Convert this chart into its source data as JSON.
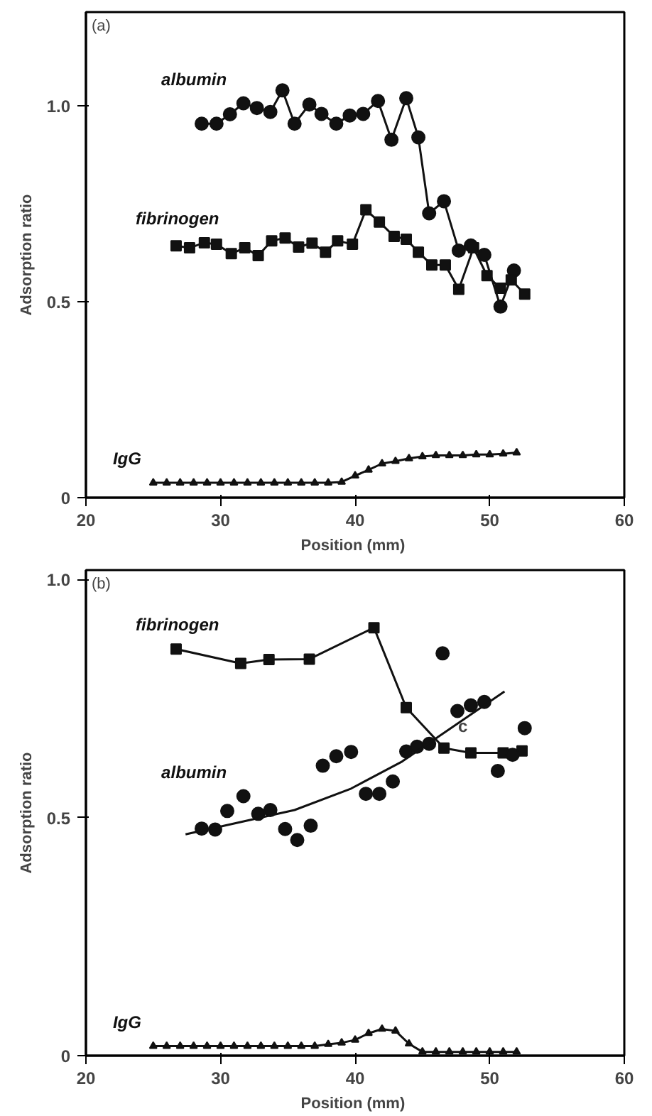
{
  "chart_data": [
    {
      "type": "line",
      "xlabel": "Position  (mm)",
      "ylabel": "Adsorption ratio",
      "annotations": [
        "(a)"
      ],
      "xlim": [
        20,
        60
      ],
      "xticks": [
        20,
        30,
        40,
        50,
        60
      ],
      "ylim": [
        0,
        1.24
      ],
      "yticks": [
        0,
        0.5,
        {
          "value": 1,
          "label": "1.0"
        }
      ],
      "grid": false,
      "line_style": "solid",
      "series": [
        {
          "name": "albumin",
          "color": "#111111",
          "marker": "circle",
          "x": [
            28.6,
            29.7,
            30.7,
            31.7,
            32.7,
            33.7,
            34.6,
            35.5,
            36.6,
            37.5,
            38.6,
            39.6,
            40.6,
            41.7,
            42.7,
            43.8,
            44.7,
            45.5,
            46.6,
            47.7,
            48.6,
            49.6,
            50.8,
            51.8
          ],
          "values": [
            0.955,
            0.955,
            0.979,
            1.007,
            0.995,
            0.985,
            1.04,
            0.955,
            1.004,
            0.98,
            0.955,
            0.976,
            0.98,
            1.013,
            0.914,
            1.02,
            0.92,
            0.726,
            0.757,
            0.631,
            0.644,
            0.62,
            0.488,
            0.58
          ]
        },
        {
          "name": "fibrinogen",
          "color": "#111111",
          "marker": "square",
          "x": [
            26.7,
            27.7,
            28.8,
            29.7,
            30.8,
            31.8,
            32.8,
            33.8,
            34.8,
            35.8,
            36.8,
            37.8,
            38.7,
            39.8,
            40.8,
            41.8,
            42.9,
            43.8,
            44.7,
            45.7,
            46.7,
            47.7,
            48.8,
            49.8,
            50.8,
            51.6,
            52.6
          ],
          "values": [
            0.643,
            0.638,
            0.651,
            0.647,
            0.623,
            0.638,
            0.618,
            0.656,
            0.663,
            0.64,
            0.65,
            0.627,
            0.656,
            0.647,
            0.735,
            0.704,
            0.667,
            0.66,
            0.627,
            0.594,
            0.594,
            0.532,
            0.638,
            0.567,
            0.535,
            0.556,
            0.52
          ]
        },
        {
          "name": "IgG",
          "color": "#111111",
          "marker": "triangle",
          "x": [
            25,
            26,
            27,
            28,
            29,
            30,
            31,
            32,
            33,
            34,
            35,
            36,
            37,
            38,
            39,
            40,
            41,
            42,
            43,
            44,
            45,
            46,
            47,
            48,
            49,
            50,
            51,
            52
          ],
          "values": [
            0.038,
            0.038,
            0.038,
            0.038,
            0.038,
            0.038,
            0.038,
            0.038,
            0.038,
            0.038,
            0.038,
            0.038,
            0.038,
            0.038,
            0.04,
            0.056,
            0.071,
            0.087,
            0.093,
            0.1,
            0.105,
            0.108,
            0.108,
            0.108,
            0.11,
            0.11,
            0.112,
            0.115
          ]
        }
      ]
    },
    {
      "type": "line",
      "xlabel": "Position  (mm)",
      "ylabel": "Adsorption ratio",
      "annotations": [
        "(b)",
        "c"
      ],
      "xlim": [
        20,
        60
      ],
      "xticks": [
        20,
        30,
        40,
        50,
        60
      ],
      "ylim": [
        0,
        1.02
      ],
      "yticks": [
        0,
        0.5,
        {
          "value": 1,
          "label": "1.0"
        }
      ],
      "grid": false,
      "line_style": "solid",
      "series": [
        {
          "name": "fibrinogen",
          "color": "#111111",
          "marker": "square",
          "x": [
            26.7,
            31.5,
            33.6,
            36.6,
            41.4,
            43.8,
            46.6,
            48.6,
            51.0,
            52.4
          ],
          "values": [
            0.854,
            0.824,
            0.832,
            0.833,
            0.899,
            0.731,
            0.646,
            0.636,
            0.636,
            0.64
          ]
        },
        {
          "name": "albumin",
          "type": "scatter",
          "color": "#111111",
          "marker": "circle",
          "x": [
            28.6,
            29.6,
            30.5,
            31.7,
            32.8,
            33.7,
            34.8,
            35.7,
            36.7,
            37.6,
            38.6,
            39.7,
            40.8,
            41.8,
            42.8,
            43.8,
            44.6,
            45.5,
            46.5,
            47.6,
            48.6,
            49.6,
            50.6,
            51.7,
            52.6
          ],
          "values": [
            0.477,
            0.475,
            0.514,
            0.545,
            0.508,
            0.516,
            0.476,
            0.453,
            0.483,
            0.609,
            0.629,
            0.638,
            0.55,
            0.55,
            0.576,
            0.639,
            0.649,
            0.655,
            0.845,
            0.724,
            0.736,
            0.743,
            0.598,
            0.632,
            0.688
          ]
        },
        {
          "type": "line",
          "color": "#111111",
          "marker": "none",
          "x": [
            27.4,
            35.5,
            39.7,
            43.5,
            51.1
          ],
          "values": [
            0.465,
            0.516,
            0.561,
            0.618,
            0.765
          ]
        },
        {
          "name": "IgG",
          "color": "#111111",
          "marker": "triangle",
          "x": [
            25,
            26,
            27,
            28,
            29,
            30,
            31,
            32,
            33,
            34,
            35,
            36,
            37,
            38,
            39,
            40,
            41,
            42,
            43,
            44,
            45,
            46,
            47,
            48,
            49,
            50,
            51,
            52
          ],
          "values": [
            0.02,
            0.02,
            0.02,
            0.02,
            0.02,
            0.02,
            0.02,
            0.02,
            0.02,
            0.02,
            0.02,
            0.02,
            0.02,
            0.024,
            0.027,
            0.033,
            0.047,
            0.056,
            0.052,
            0.025,
            0.008,
            0.008,
            0.008,
            0.008,
            0.008,
            0.008,
            0.008,
            0.008
          ]
        }
      ]
    }
  ]
}
